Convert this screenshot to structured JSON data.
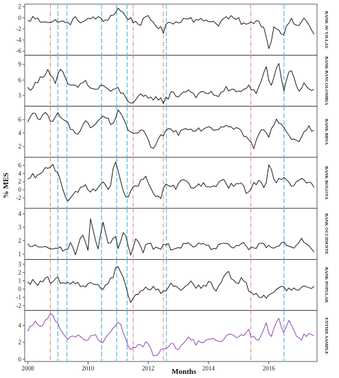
{
  "chart_data": {
    "type": "line",
    "xlabel": "Months",
    "ylabel": "% MES",
    "x_range": [
      2007.9,
      2017.6
    ],
    "x_ticks": [
      2008,
      2010,
      2012,
      2014,
      2016
    ],
    "x_tick_labels": [
      "2008",
      "2010",
      "2012",
      "2014",
      "2016"
    ],
    "grid": false,
    "line_color": "#1a1a1a",
    "highlight_color": "#8e44ad",
    "red_line_color": "#e07a7a",
    "blue_line_color": "#7ec8e3",
    "vertical_lines": {
      "red": [
        2008.75,
        2011.5,
        2012.5,
        2015.4
      ],
      "blue": [
        2009.0,
        2009.3,
        2010.45,
        2010.95,
        2011.3,
        2012.6,
        2016.5
      ]
    },
    "panels": [
      {
        "name": "BANK AV VILLAS",
        "color": "#1a1a1a",
        "ylim": [
          -6.5,
          2.2
        ],
        "yticks": [
          2,
          0,
          -2,
          -4,
          -6
        ],
        "knots": [
          [
            2008.0,
            -0.7
          ],
          [
            2008.2,
            0.1
          ],
          [
            2008.4,
            -0.6
          ],
          [
            2008.6,
            -0.4
          ],
          [
            2008.8,
            -1.0
          ],
          [
            2009.0,
            -0.4
          ],
          [
            2009.3,
            -1.2
          ],
          [
            2009.6,
            -0.2
          ],
          [
            2009.9,
            -0.8
          ],
          [
            2010.2,
            0.2
          ],
          [
            2010.5,
            -0.6
          ],
          [
            2010.8,
            0.4
          ],
          [
            2011.0,
            1.6
          ],
          [
            2011.2,
            0.6
          ],
          [
            2011.4,
            -0.3
          ],
          [
            2011.7,
            -1.1
          ],
          [
            2012.0,
            0.0
          ],
          [
            2012.3,
            -1.4
          ],
          [
            2012.5,
            -2.6
          ],
          [
            2012.7,
            -0.4
          ],
          [
            2013.0,
            -1.0
          ],
          [
            2013.3,
            0.4
          ],
          [
            2013.6,
            -0.7
          ],
          [
            2014.0,
            -0.3
          ],
          [
            2014.3,
            -1.2
          ],
          [
            2014.6,
            0.1
          ],
          [
            2015.0,
            -0.5
          ],
          [
            2015.3,
            -1.5
          ],
          [
            2015.6,
            -0.2
          ],
          [
            2015.9,
            -2.5
          ],
          [
            2016.0,
            -5.6
          ],
          [
            2016.2,
            -1.2
          ],
          [
            2016.5,
            -3.0
          ],
          [
            2016.7,
            -0.4
          ],
          [
            2017.0,
            -1.6
          ],
          [
            2017.2,
            0.2
          ],
          [
            2017.5,
            -3.2
          ]
        ]
      },
      {
        "name": "BANK BANCOLOMBIA",
        "color": "#1a1a1a",
        "ylim": [
          1.2,
          10.5
        ],
        "yticks": [
          9,
          6,
          3
        ],
        "knots": [
          [
            2008.0,
            4.3
          ],
          [
            2008.3,
            5.2
          ],
          [
            2008.5,
            7.0
          ],
          [
            2008.7,
            8.1
          ],
          [
            2008.9,
            5.4
          ],
          [
            2009.1,
            8.0
          ],
          [
            2009.3,
            5.3
          ],
          [
            2009.6,
            4.4
          ],
          [
            2009.9,
            5.8
          ],
          [
            2010.2,
            3.9
          ],
          [
            2010.5,
            5.0
          ],
          [
            2010.8,
            3.6
          ],
          [
            2011.0,
            4.3
          ],
          [
            2011.3,
            2.2
          ],
          [
            2011.5,
            1.7
          ],
          [
            2011.8,
            3.0
          ],
          [
            2012.0,
            2.2
          ],
          [
            2012.3,
            2.8
          ],
          [
            2012.5,
            1.8
          ],
          [
            2012.8,
            3.6
          ],
          [
            2013.0,
            2.9
          ],
          [
            2013.3,
            4.2
          ],
          [
            2013.6,
            3.0
          ],
          [
            2014.0,
            3.6
          ],
          [
            2014.3,
            3.0
          ],
          [
            2014.6,
            4.3
          ],
          [
            2015.0,
            3.5
          ],
          [
            2015.3,
            5.0
          ],
          [
            2015.6,
            3.3
          ],
          [
            2015.9,
            8.6
          ],
          [
            2016.1,
            4.1
          ],
          [
            2016.3,
            9.8
          ],
          [
            2016.5,
            4.2
          ],
          [
            2016.7,
            8.3
          ],
          [
            2017.0,
            4.0
          ],
          [
            2017.2,
            5.2
          ],
          [
            2017.5,
            3.8
          ]
        ]
      },
      {
        "name": "BANK BBVA",
        "color": "#1a1a1a",
        "ylim": [
          0.6,
          7.8
        ],
        "yticks": [
          6,
          4,
          2
        ],
        "knots": [
          [
            2008.0,
            5.4
          ],
          [
            2008.2,
            7.2
          ],
          [
            2008.4,
            6.1
          ],
          [
            2008.6,
            6.8
          ],
          [
            2008.8,
            5.3
          ],
          [
            2009.0,
            7.0
          ],
          [
            2009.3,
            6.0
          ],
          [
            2009.6,
            3.4
          ],
          [
            2009.9,
            5.8
          ],
          [
            2010.2,
            4.6
          ],
          [
            2010.5,
            6.6
          ],
          [
            2010.8,
            5.2
          ],
          [
            2011.0,
            7.2
          ],
          [
            2011.3,
            4.8
          ],
          [
            2011.5,
            3.8
          ],
          [
            2011.8,
            4.2
          ],
          [
            2012.0,
            2.9
          ],
          [
            2012.2,
            1.2
          ],
          [
            2012.4,
            3.6
          ],
          [
            2012.7,
            4.6
          ],
          [
            2013.0,
            4.0
          ],
          [
            2013.3,
            5.0
          ],
          [
            2013.6,
            4.5
          ],
          [
            2014.0,
            5.0
          ],
          [
            2014.3,
            4.6
          ],
          [
            2014.6,
            5.4
          ],
          [
            2015.0,
            4.6
          ],
          [
            2015.3,
            3.2
          ],
          [
            2015.5,
            1.8
          ],
          [
            2015.8,
            5.0
          ],
          [
            2016.0,
            3.2
          ],
          [
            2016.2,
            6.0
          ],
          [
            2016.5,
            5.2
          ],
          [
            2016.7,
            3.4
          ],
          [
            2016.9,
            2.4
          ],
          [
            2017.2,
            4.6
          ],
          [
            2017.5,
            4.8
          ]
        ]
      },
      {
        "name": "BANK BOGOTA",
        "color": "#1a1a1a",
        "ylim": [
          -4.2,
          7.6
        ],
        "yticks": [
          6,
          4,
          2,
          0,
          -2
        ],
        "knots": [
          [
            2008.0,
            2.2
          ],
          [
            2008.2,
            3.5
          ],
          [
            2008.4,
            3.2
          ],
          [
            2008.6,
            5.2
          ],
          [
            2008.8,
            6.2
          ],
          [
            2009.0,
            4.4
          ],
          [
            2009.3,
            -2.6
          ],
          [
            2009.6,
            -1.0
          ],
          [
            2009.9,
            1.2
          ],
          [
            2010.2,
            -0.6
          ],
          [
            2010.5,
            2.0
          ],
          [
            2010.7,
            -0.2
          ],
          [
            2010.9,
            6.8
          ],
          [
            2011.1,
            1.4
          ],
          [
            2011.3,
            -1.8
          ],
          [
            2011.6,
            1.0
          ],
          [
            2011.9,
            3.0
          ],
          [
            2012.2,
            -1.2
          ],
          [
            2012.4,
            -2.4
          ],
          [
            2012.6,
            1.6
          ],
          [
            2012.9,
            0.2
          ],
          [
            2013.2,
            2.8
          ],
          [
            2013.5,
            0.4
          ],
          [
            2013.8,
            1.6
          ],
          [
            2014.1,
            0.0
          ],
          [
            2014.4,
            2.4
          ],
          [
            2014.7,
            0.8
          ],
          [
            2015.0,
            1.6
          ],
          [
            2015.3,
            -0.6
          ],
          [
            2015.6,
            2.0
          ],
          [
            2015.9,
            1.0
          ],
          [
            2016.0,
            6.4
          ],
          [
            2016.2,
            2.2
          ],
          [
            2016.5,
            2.4
          ],
          [
            2016.8,
            1.2
          ],
          [
            2017.1,
            2.4
          ],
          [
            2017.5,
            1.0
          ]
        ]
      },
      {
        "name": "BANK OCCIDENTE",
        "color": "#1a1a1a",
        "ylim": [
          0.7,
          4.3
        ],
        "yticks": [
          4,
          3,
          2,
          1
        ],
        "knots": [
          [
            2008.0,
            1.6
          ],
          [
            2008.3,
            1.6
          ],
          [
            2008.6,
            1.5
          ],
          [
            2008.8,
            1.2
          ],
          [
            2009.0,
            1.6
          ],
          [
            2009.2,
            1.2
          ],
          [
            2009.4,
            1.7
          ],
          [
            2009.6,
            1.1
          ],
          [
            2009.8,
            2.6
          ],
          [
            2010.0,
            1.3
          ],
          [
            2010.1,
            3.9
          ],
          [
            2010.3,
            1.2
          ],
          [
            2010.5,
            3.4
          ],
          [
            2010.7,
            1.3
          ],
          [
            2010.9,
            2.6
          ],
          [
            2011.0,
            1.2
          ],
          [
            2011.2,
            3.0
          ],
          [
            2011.4,
            1.0
          ],
          [
            2011.6,
            2.2
          ],
          [
            2011.8,
            1.2
          ],
          [
            2012.0,
            1.8
          ],
          [
            2012.3,
            1.3
          ],
          [
            2012.6,
            1.7
          ],
          [
            2012.9,
            1.2
          ],
          [
            2013.2,
            1.9
          ],
          [
            2013.5,
            1.3
          ],
          [
            2013.8,
            2.0
          ],
          [
            2014.1,
            1.3
          ],
          [
            2014.4,
            1.8
          ],
          [
            2014.8,
            1.4
          ],
          [
            2015.1,
            1.9
          ],
          [
            2015.4,
            1.3
          ],
          [
            2015.8,
            1.7
          ],
          [
            2016.1,
            1.4
          ],
          [
            2016.5,
            1.8
          ],
          [
            2016.8,
            1.3
          ],
          [
            2017.1,
            2.2
          ],
          [
            2017.5,
            1.2
          ]
        ]
      },
      {
        "name": "BANK POPULAR",
        "color": "#1a1a1a",
        "ylim": [
          -2.4,
          3.4
        ],
        "yticks": [
          3,
          2,
          1,
          0,
          -1,
          -2
        ],
        "knots": [
          [
            2008.0,
            0.6
          ],
          [
            2008.2,
            1.0
          ],
          [
            2008.4,
            0.6
          ],
          [
            2008.6,
            1.4
          ],
          [
            2008.8,
            0.6
          ],
          [
            2009.0,
            1.2
          ],
          [
            2009.3,
            0.4
          ],
          [
            2009.6,
            1.0
          ],
          [
            2009.9,
            0.2
          ],
          [
            2010.2,
            0.9
          ],
          [
            2010.5,
            0.0
          ],
          [
            2010.8,
            1.4
          ],
          [
            2011.0,
            3.0
          ],
          [
            2011.2,
            1.2
          ],
          [
            2011.4,
            -1.6
          ],
          [
            2011.6,
            -0.6
          ],
          [
            2011.9,
            0.0
          ],
          [
            2012.2,
            0.2
          ],
          [
            2012.5,
            -0.4
          ],
          [
            2012.8,
            0.6
          ],
          [
            2013.1,
            0.0
          ],
          [
            2013.4,
            0.8
          ],
          [
            2013.7,
            0.2
          ],
          [
            2014.0,
            0.6
          ],
          [
            2014.3,
            0.0
          ],
          [
            2014.6,
            2.2
          ],
          [
            2014.9,
            0.6
          ],
          [
            2015.1,
            1.4
          ],
          [
            2015.4,
            -0.4
          ],
          [
            2015.6,
            -0.6
          ],
          [
            2015.9,
            -0.8
          ],
          [
            2016.2,
            -0.4
          ],
          [
            2016.5,
            0.2
          ],
          [
            2016.8,
            -0.2
          ],
          [
            2017.1,
            0.4
          ],
          [
            2017.5,
            0.3
          ]
        ]
      },
      {
        "name": "ENTIRE SAMPLE",
        "color": "#8e44ad",
        "ylim": [
          -0.1,
          5.6
        ],
        "yticks": [
          4,
          2,
          0
        ],
        "knots": [
          [
            2008.0,
            3.0
          ],
          [
            2008.2,
            4.4
          ],
          [
            2008.4,
            3.8
          ],
          [
            2008.6,
            4.8
          ],
          [
            2008.8,
            5.2
          ],
          [
            2009.0,
            4.2
          ],
          [
            2009.3,
            2.0
          ],
          [
            2009.6,
            3.0
          ],
          [
            2009.9,
            2.2
          ],
          [
            2010.2,
            3.0
          ],
          [
            2010.5,
            2.0
          ],
          [
            2010.8,
            3.4
          ],
          [
            2011.0,
            4.6
          ],
          [
            2011.2,
            2.8
          ],
          [
            2011.4,
            1.0
          ],
          [
            2011.7,
            1.6
          ],
          [
            2012.0,
            2.0
          ],
          [
            2012.2,
            0.2
          ],
          [
            2012.4,
            0.8
          ],
          [
            2012.7,
            1.8
          ],
          [
            2013.0,
            1.4
          ],
          [
            2013.3,
            2.4
          ],
          [
            2013.6,
            1.8
          ],
          [
            2014.0,
            2.6
          ],
          [
            2014.3,
            1.8
          ],
          [
            2014.6,
            2.8
          ],
          [
            2015.0,
            2.4
          ],
          [
            2015.3,
            3.4
          ],
          [
            2015.6,
            2.0
          ],
          [
            2015.9,
            4.2
          ],
          [
            2016.1,
            2.6
          ],
          [
            2016.3,
            5.2
          ],
          [
            2016.5,
            3.2
          ],
          [
            2016.7,
            4.6
          ],
          [
            2017.0,
            2.4
          ],
          [
            2017.2,
            2.8
          ],
          [
            2017.5,
            2.6
          ]
        ]
      }
    ]
  }
}
